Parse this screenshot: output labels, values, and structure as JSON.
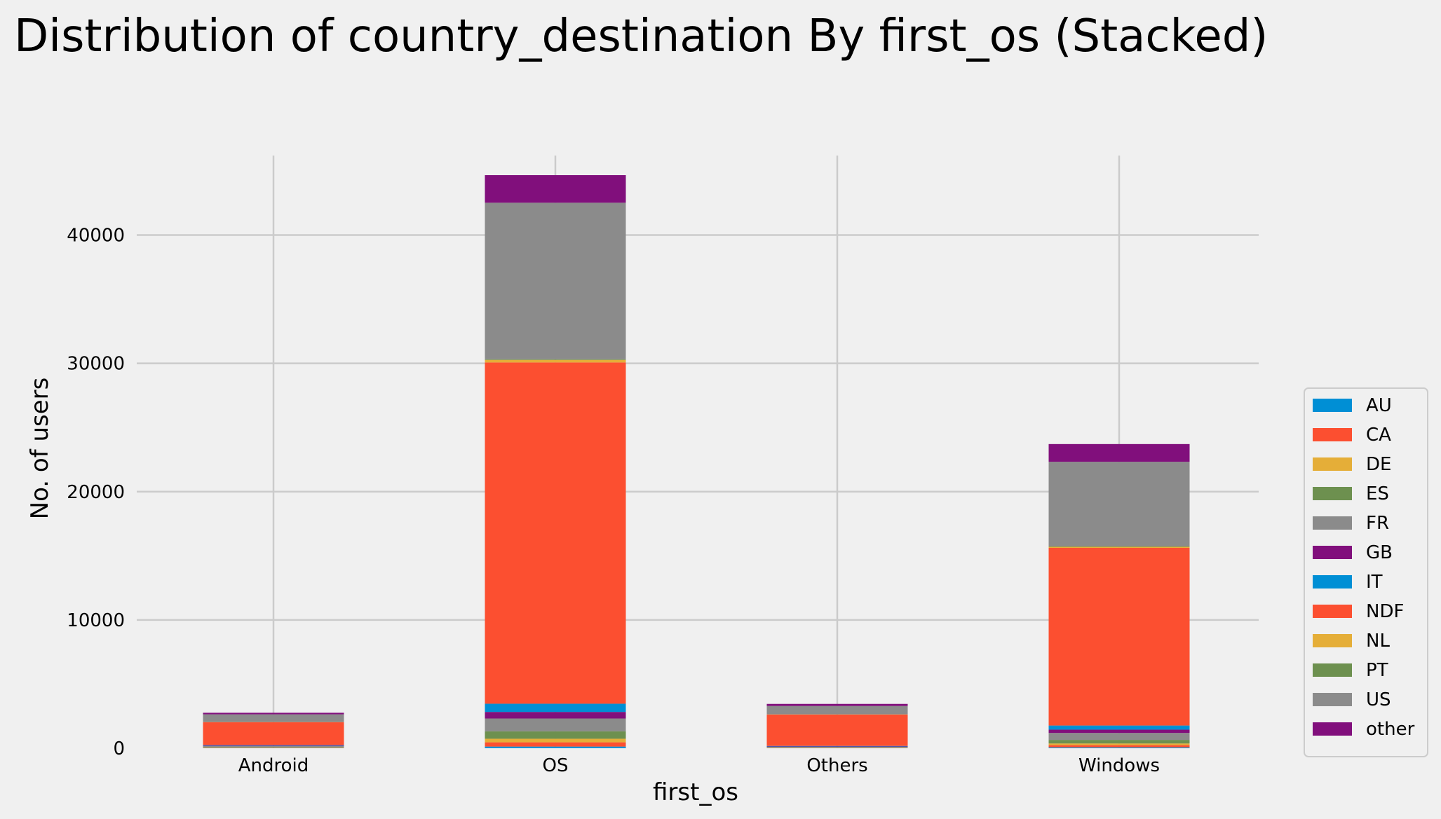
{
  "chart_data": {
    "type": "bar",
    "stacked": true,
    "title": "Distribution of country_destination By first_os (Stacked)",
    "xlabel": "first_os",
    "ylabel": "No. of users",
    "categories": [
      "Android",
      "OS",
      "Others",
      "Windows"
    ],
    "ylim": [
      0,
      46200
    ],
    "yticks": [
      0,
      10000,
      20000,
      30000,
      40000
    ],
    "grid": true,
    "legend_position": "right",
    "series": [
      {
        "name": "AU",
        "color": "#008fd5",
        "values": [
          10,
          130,
          5,
          70
        ]
      },
      {
        "name": "CA",
        "color": "#fc4f30",
        "values": [
          20,
          330,
          15,
          170
        ]
      },
      {
        "name": "DE",
        "color": "#e5ae38",
        "values": [
          15,
          280,
          10,
          130
        ]
      },
      {
        "name": "ES",
        "color": "#6d904f",
        "values": [
          40,
          580,
          25,
          280
        ]
      },
      {
        "name": "FR",
        "color": "#8b8b8b",
        "values": [
          80,
          1000,
          55,
          540
        ]
      },
      {
        "name": "GB",
        "color": "#810f7c",
        "values": [
          40,
          510,
          30,
          260
        ]
      },
      {
        "name": "IT",
        "color": "#008fd5",
        "values": [
          45,
          640,
          40,
          320
        ]
      },
      {
        "name": "NDF",
        "color": "#fc4f30",
        "values": [
          1780,
          26600,
          2450,
          13850
        ]
      },
      {
        "name": "NL",
        "color": "#e5ae38",
        "values": [
          10,
          200,
          10,
          80
        ]
      },
      {
        "name": "PT",
        "color": "#6d904f",
        "values": [
          5,
          50,
          5,
          30
        ]
      },
      {
        "name": "US",
        "color": "#8b8b8b",
        "values": [
          600,
          12200,
          650,
          6600
        ]
      },
      {
        "name": "other",
        "color": "#810f7c",
        "values": [
          120,
          2150,
          160,
          1380
        ]
      }
    ]
  }
}
